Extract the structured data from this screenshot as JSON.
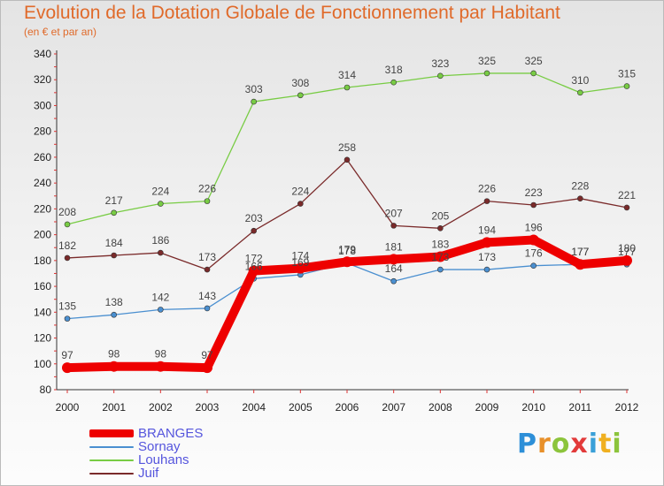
{
  "title": "Evolution de la Dotation Globale de Fonctionnement par Habitant",
  "subtitle": "(en € et par an)",
  "brand": "Proxiti",
  "chart_data": {
    "type": "line",
    "title": "Evolution de la Dotation Globale de Fonctionnement par Habitant",
    "subtitle": "(en € et par an)",
    "xlabel": "",
    "ylabel": "",
    "x": [
      "2000",
      "2001",
      "2002",
      "2003",
      "2004",
      "2005",
      "2006",
      "2007",
      "2008",
      "2009",
      "2010",
      "2011",
      "2012"
    ],
    "ylim": [
      80,
      340
    ],
    "yticks": [
      80,
      100,
      120,
      140,
      160,
      180,
      200,
      220,
      240,
      260,
      280,
      300,
      320,
      340
    ],
    "grid": false,
    "legend_position": "bottom-left",
    "series": [
      {
        "name": "BRANGES",
        "color": "#ee0000",
        "values": [
          97,
          98,
          98,
          97,
          172,
          174,
          179,
          181,
          183,
          194,
          196,
          177,
          180
        ],
        "labels": [
          "97",
          "98",
          "98",
          "97",
          "172",
          "174",
          "179",
          "181",
          "183",
          "194",
          "196",
          "177",
          "180"
        ]
      },
      {
        "name": "Sornay",
        "color": "#4a8fd0",
        "values": [
          135,
          138,
          142,
          143,
          166,
          169,
          178,
          164,
          173,
          173,
          176,
          177,
          177
        ],
        "labels": [
          "135",
          "138",
          "142",
          "143",
          "166",
          "169",
          "178",
          "164",
          "173",
          "173",
          "176",
          "177",
          "177"
        ]
      },
      {
        "name": "Louhans",
        "color": "#78cc44",
        "values": [
          208,
          217,
          224,
          226,
          303,
          308,
          314,
          318,
          323,
          325,
          325,
          310,
          315
        ],
        "labels": [
          "208",
          "217",
          "224",
          "226",
          "303",
          "308",
          "314",
          "318",
          "323",
          "325",
          "325",
          "310",
          "315"
        ]
      },
      {
        "name": "Juif",
        "color": "#7a2a2a",
        "values": [
          182,
          184,
          186,
          173,
          203,
          224,
          258,
          207,
          205,
          226,
          223,
          228,
          221
        ],
        "labels": [
          "182",
          "184",
          "186",
          "173",
          "203",
          "224",
          "258",
          "207",
          "205",
          "226",
          "223",
          "228",
          "221"
        ]
      }
    ]
  }
}
